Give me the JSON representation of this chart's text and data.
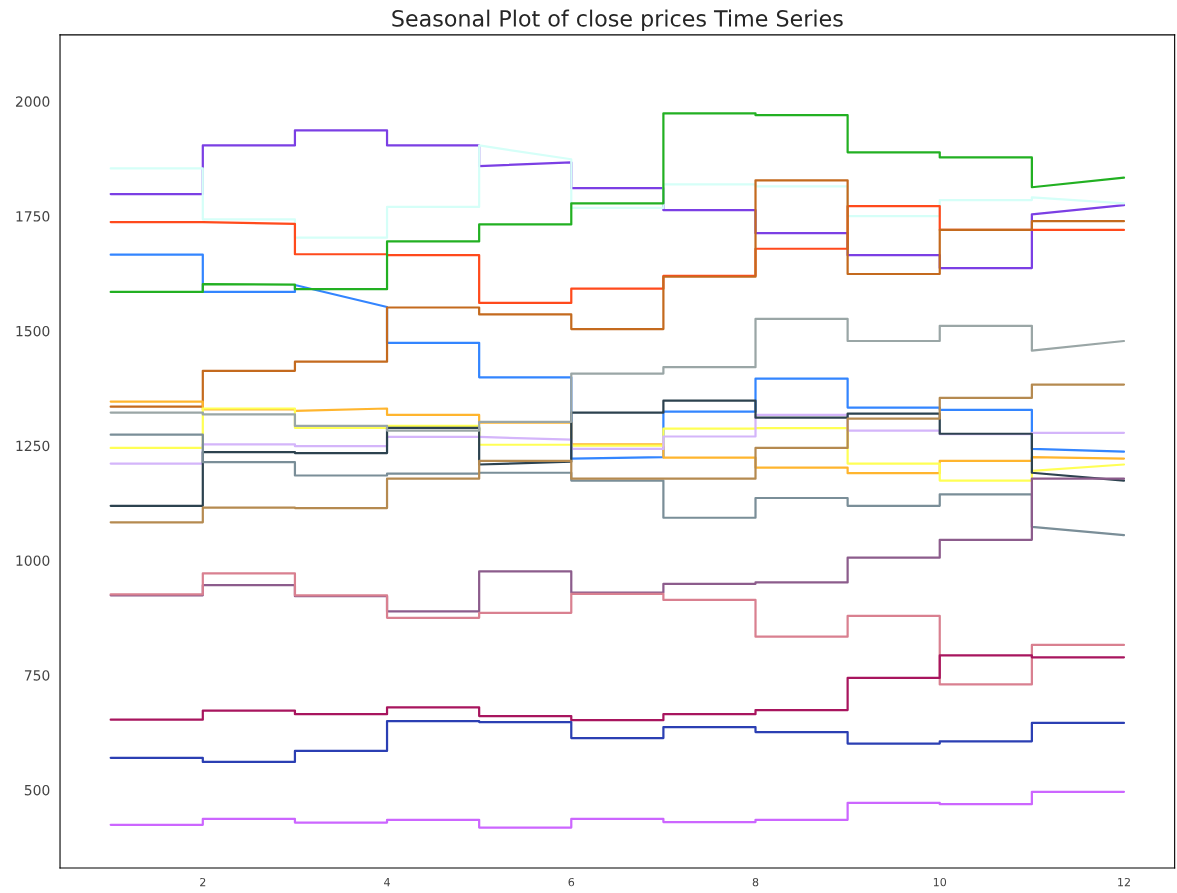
{
  "chart_data": {
    "type": "line",
    "title": "Seasonal Plot of close prices Time Series",
    "x": [
      1,
      2,
      2,
      3,
      3,
      4,
      4,
      5,
      5,
      6,
      6,
      7,
      7,
      8,
      8,
      9,
      9,
      10,
      10,
      11,
      11,
      12
    ],
    "xlim": [
      0.45,
      12.55
    ],
    "xticks": [
      2,
      4,
      6,
      8,
      10,
      12
    ],
    "ylim": [
      330,
      2145
    ],
    "yticks": [
      500,
      750,
      1000,
      1250,
      1500,
      1750,
      2000
    ],
    "grid": false,
    "marker": "none",
    "line_style": "solid",
    "series": [
      {
        "color": "#7b3fe4",
        "values": [
          1798,
          1798,
          1904,
          1904,
          1937,
          1937,
          1904,
          1904,
          1859,
          1867,
          1811,
          1811,
          1763,
          1763,
          1713,
          1713,
          1665,
          1665,
          1637,
          1637,
          1754,
          1774
        ]
      },
      {
        "color": "#d5fff8",
        "values": [
          1854,
          1854,
          1743,
          1743,
          1703,
          1703,
          1770,
          1770,
          1904,
          1874,
          1768,
          1768,
          1819,
          1819,
          1815,
          1815,
          1750,
          1750,
          1785,
          1785,
          1791,
          1778
        ]
      },
      {
        "color": "#ff4a1c",
        "values": [
          1737,
          1737,
          1737,
          1733,
          1667,
          1667,
          1665,
          1665,
          1561,
          1561,
          1592,
          1592,
          1620,
          1620,
          1679,
          1679,
          1772,
          1772,
          1720,
          1720,
          1720,
          1720
        ]
      },
      {
        "color": "#3385ff",
        "values": [
          1666,
          1666,
          1585,
          1585,
          1600,
          1552,
          1474,
          1474,
          1399,
          1399,
          1222,
          1225,
          1324,
          1324,
          1396,
          1396,
          1333,
          1333,
          1328,
          1328,
          1243,
          1237
        ]
      },
      {
        "color": "#22b022",
        "values": [
          1585,
          1585,
          1602,
          1601,
          1591,
          1591,
          1695,
          1695,
          1732,
          1732,
          1778,
          1778,
          1974,
          1974,
          1970,
          1970,
          1889,
          1889,
          1878,
          1878,
          1813,
          1834
        ]
      },
      {
        "color": "#c46a1e",
        "values": [
          1335,
          1335,
          1413,
          1413,
          1433,
          1433,
          1551,
          1551,
          1536,
          1536,
          1504,
          1504,
          1618,
          1618,
          1828,
          1828,
          1624,
          1624,
          1720,
          1720,
          1739,
          1739
        ]
      },
      {
        "color": "#ffb52e",
        "values": [
          1346,
          1346,
          1329,
          1329,
          1326,
          1331,
          1317,
          1317,
          1300,
          1300,
          1253,
          1253,
          1224,
          1224,
          1202,
          1202,
          1190,
          1190,
          1217,
          1217,
          1225,
          1222
        ]
      },
      {
        "color": "#ffff55",
        "values": [
          1245,
          1245,
          1331,
          1331,
          1289,
          1289,
          1293,
          1293,
          1252,
          1252,
          1250,
          1250,
          1287,
          1287,
          1288,
          1288,
          1211,
          1211,
          1174,
          1174,
          1195,
          1209
        ]
      },
      {
        "color": "#d4b5fa",
        "values": [
          1211,
          1211,
          1253,
          1253,
          1249,
          1249,
          1269,
          1269,
          1269,
          1263,
          1243,
          1243,
          1270,
          1270,
          1317,
          1317,
          1283,
          1283,
          1275,
          1275,
          1278,
          1278
        ]
      },
      {
        "color": "#2c424f",
        "values": [
          1119,
          1119,
          1236,
          1236,
          1234,
          1234,
          1289,
          1289,
          1209,
          1215,
          1322,
          1322,
          1348,
          1348,
          1311,
          1311,
          1320,
          1320,
          1276,
          1276,
          1191,
          1174
        ]
      },
      {
        "color": "#9aa6a6",
        "values": [
          1322,
          1322,
          1318,
          1318,
          1293,
          1293,
          1283,
          1283,
          1302,
          1302,
          1407,
          1407,
          1421,
          1421,
          1526,
          1526,
          1478,
          1478,
          1511,
          1511,
          1457,
          1478
        ]
      },
      {
        "color": "#7a8e98",
        "values": [
          1274,
          1274,
          1214,
          1214,
          1185,
          1185,
          1189,
          1189,
          1191,
          1191,
          1174,
          1174,
          1093,
          1093,
          1136,
          1136,
          1119,
          1119,
          1144,
          1144,
          1073,
          1055
        ]
      },
      {
        "color": "#b58a50",
        "values": [
          1083,
          1083,
          1115,
          1115,
          1114,
          1114,
          1178,
          1178,
          1217,
          1217,
          1178,
          1178,
          1178,
          1178,
          1245,
          1245,
          1309,
          1309,
          1354,
          1354,
          1383,
          1383
        ]
      },
      {
        "color": "#8c5c8c",
        "values": [
          924,
          924,
          946,
          946,
          922,
          922,
          889,
          889,
          976,
          976,
          930,
          930,
          949,
          949,
          952,
          952,
          1006,
          1006,
          1045,
          1045,
          1178,
          1178
        ]
      },
      {
        "color": "#d98090",
        "values": [
          926,
          926,
          972,
          972,
          924,
          924,
          875,
          875,
          886,
          886,
          927,
          927,
          914,
          914,
          834,
          834,
          879,
          879,
          730,
          730,
          816,
          816
        ]
      },
      {
        "color": "#a8155e",
        "values": [
          653,
          653,
          673,
          673,
          665,
          665,
          680,
          680,
          661,
          661,
          652,
          652,
          665,
          665,
          674,
          674,
          744,
          744,
          793,
          793,
          789,
          789
        ]
      },
      {
        "color": "#2b3fb3",
        "values": [
          570,
          570,
          561,
          561,
          585,
          585,
          650,
          650,
          648,
          648,
          613,
          613,
          637,
          637,
          626,
          626,
          601,
          601,
          606,
          606,
          646,
          646
        ]
      },
      {
        "color": "#cc66ff",
        "values": [
          424,
          424,
          437,
          437,
          429,
          429,
          435,
          435,
          418,
          418,
          437,
          437,
          430,
          430,
          435,
          435,
          472,
          472,
          469,
          469,
          496,
          496
        ]
      }
    ]
  }
}
